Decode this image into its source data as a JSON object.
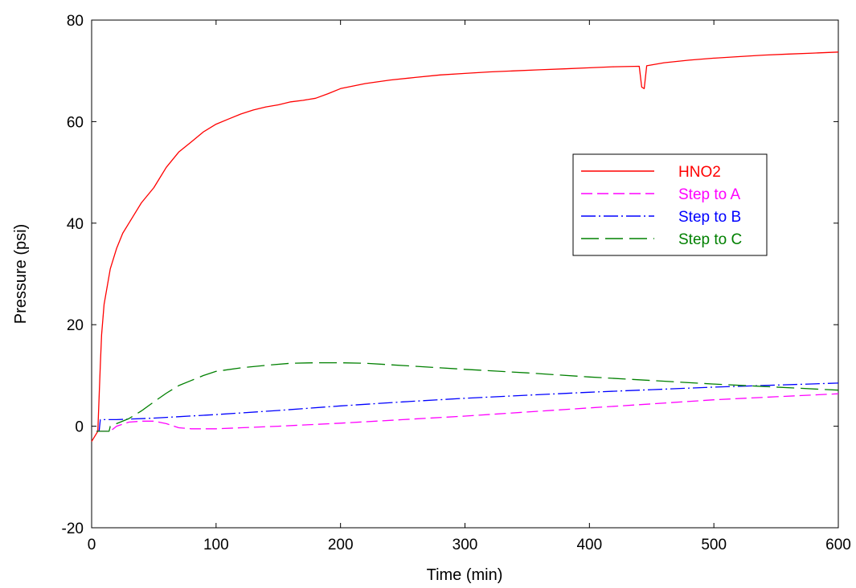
{
  "chart_data": {
    "type": "line",
    "title": "",
    "xlabel": "Time (min)",
    "ylabel": "Pressure (psi)",
    "xlim": [
      0,
      600
    ],
    "ylim": [
      -20,
      80
    ],
    "xticks": [
      0,
      100,
      200,
      300,
      400,
      500,
      600
    ],
    "yticks": [
      -20,
      0,
      20,
      40,
      60,
      80
    ],
    "xtick_labels": [
      "0",
      "100",
      "200",
      "300",
      "400",
      "500",
      "600"
    ],
    "ytick_labels": [
      "-20",
      "0",
      "20",
      "40",
      "60",
      "80"
    ],
    "grid": false,
    "legend_position": "right",
    "series": [
      {
        "name": "HNO2",
        "color": "#ff0000",
        "dash": "solid",
        "points": [
          [
            0,
            -3
          ],
          [
            5,
            -1
          ],
          [
            7,
            12
          ],
          [
            8,
            18
          ],
          [
            10,
            24
          ],
          [
            15,
            31
          ],
          [
            20,
            35
          ],
          [
            25,
            38
          ],
          [
            30,
            40
          ],
          [
            40,
            44
          ],
          [
            50,
            47
          ],
          [
            55,
            49
          ],
          [
            60,
            51
          ],
          [
            70,
            54
          ],
          [
            80,
            56
          ],
          [
            90,
            58
          ],
          [
            100,
            59.5
          ],
          [
            110,
            60.5
          ],
          [
            120,
            61.5
          ],
          [
            130,
            62.3
          ],
          [
            140,
            62.9
          ],
          [
            150,
            63.3
          ],
          [
            160,
            63.9
          ],
          [
            170,
            64.2
          ],
          [
            180,
            64.6
          ],
          [
            190,
            65.5
          ],
          [
            200,
            66.5
          ],
          [
            220,
            67.5
          ],
          [
            240,
            68.2
          ],
          [
            260,
            68.7
          ],
          [
            280,
            69.2
          ],
          [
            300,
            69.5
          ],
          [
            320,
            69.8
          ],
          [
            340,
            70
          ],
          [
            360,
            70.2
          ],
          [
            380,
            70.4
          ],
          [
            400,
            70.6
          ],
          [
            420,
            70.8
          ],
          [
            440,
            70.9
          ],
          [
            442,
            66.8
          ],
          [
            444,
            66.5
          ],
          [
            446,
            71
          ],
          [
            460,
            71.6
          ],
          [
            480,
            72.1
          ],
          [
            500,
            72.5
          ],
          [
            520,
            72.8
          ],
          [
            540,
            73.1
          ],
          [
            560,
            73.3
          ],
          [
            580,
            73.5
          ],
          [
            600,
            73.7
          ]
        ]
      },
      {
        "name": "Step to A",
        "color": "#ff00ff",
        "dash": "dashed",
        "points": [
          [
            4,
            -1
          ],
          [
            15,
            -1
          ],
          [
            20,
            0
          ],
          [
            30,
            0.8
          ],
          [
            40,
            1
          ],
          [
            50,
            1
          ],
          [
            60,
            0.5
          ],
          [
            70,
            -0.3
          ],
          [
            80,
            -0.5
          ],
          [
            100,
            -0.5
          ],
          [
            120,
            -0.3
          ],
          [
            150,
            0
          ],
          [
            200,
            0.6
          ],
          [
            250,
            1.3
          ],
          [
            300,
            2
          ],
          [
            350,
            2.8
          ],
          [
            400,
            3.6
          ],
          [
            450,
            4.4
          ],
          [
            500,
            5.2
          ],
          [
            550,
            5.8
          ],
          [
            600,
            6.4
          ]
        ]
      },
      {
        "name": "Step to B",
        "color": "#0000ff",
        "dash": "dashdot",
        "points": [
          [
            4,
            -1
          ],
          [
            6,
            -1
          ],
          [
            7,
            1.3
          ],
          [
            20,
            1.3
          ],
          [
            50,
            1.6
          ],
          [
            100,
            2.3
          ],
          [
            150,
            3.1
          ],
          [
            200,
            4
          ],
          [
            250,
            4.8
          ],
          [
            300,
            5.5
          ],
          [
            350,
            6.1
          ],
          [
            400,
            6.7
          ],
          [
            450,
            7.2
          ],
          [
            500,
            7.7
          ],
          [
            550,
            8.1
          ],
          [
            600,
            8.5
          ]
        ]
      },
      {
        "name": "Step to C",
        "color": "#008000",
        "dash": "longdash",
        "points": [
          [
            4,
            -1
          ],
          [
            14,
            -1
          ],
          [
            15,
            0
          ],
          [
            20,
            0.5
          ],
          [
            30,
            1.5
          ],
          [
            40,
            3
          ],
          [
            50,
            4.8
          ],
          [
            60,
            6.5
          ],
          [
            70,
            8
          ],
          [
            80,
            9
          ],
          [
            90,
            10
          ],
          [
            100,
            10.8
          ],
          [
            120,
            11.5
          ],
          [
            140,
            12
          ],
          [
            160,
            12.4
          ],
          [
            180,
            12.5
          ],
          [
            200,
            12.5
          ],
          [
            220,
            12.4
          ],
          [
            240,
            12.1
          ],
          [
            260,
            11.8
          ],
          [
            280,
            11.5
          ],
          [
            300,
            11.2
          ],
          [
            350,
            10.5
          ],
          [
            400,
            9.7
          ],
          [
            450,
            9
          ],
          [
            500,
            8.3
          ],
          [
            550,
            7.7
          ],
          [
            600,
            7.1
          ]
        ]
      }
    ]
  }
}
